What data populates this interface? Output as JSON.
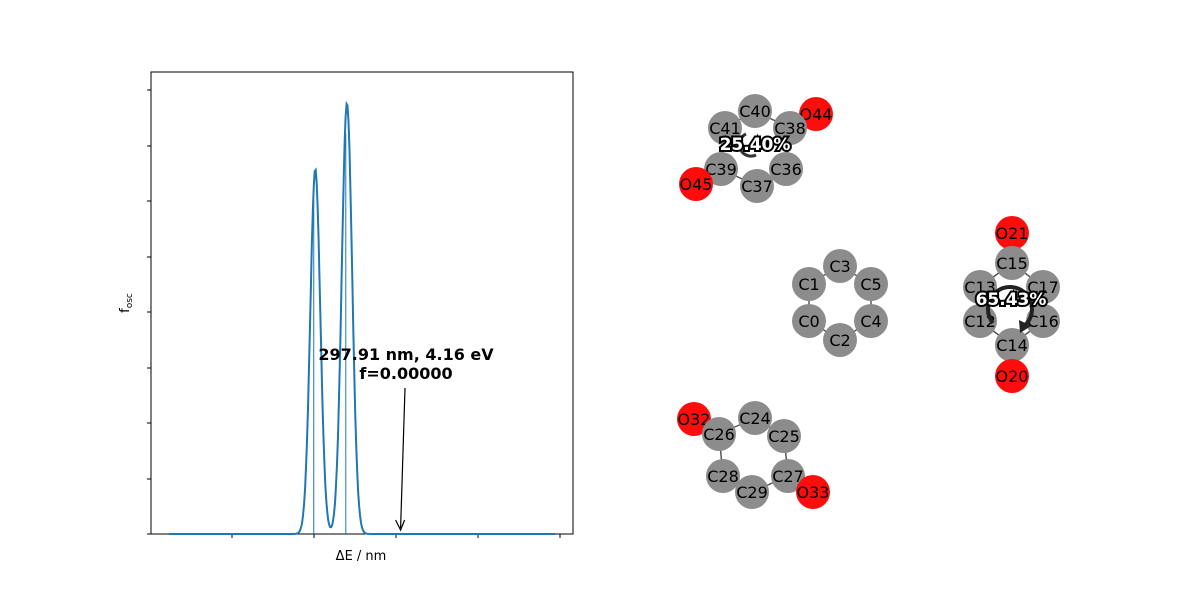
{
  "chart_data": {
    "type": "line",
    "title": "",
    "xlabel": "ΔE / nm",
    "ylabel": "f",
    "ylabel_subscript": "osc",
    "x_tick_labels": [],
    "y_tick_labels": [],
    "grid": false,
    "series": [
      {
        "values": [
          {
            "x": 0.05,
            "y": 0.0
          },
          {
            "x": 0.25,
            "y": 0.0
          },
          {
            "x": 0.32,
            "y": 0.002
          },
          {
            "x": 0.35,
            "y": 0.1
          },
          {
            "x": 0.37,
            "y": 0.55
          },
          {
            "x": 0.385,
            "y": 0.85
          },
          {
            "x": 0.395,
            "y": 0.72
          },
          {
            "x": 0.41,
            "y": 0.2
          },
          {
            "x": 0.425,
            "y": 0.05
          },
          {
            "x": 0.44,
            "y": 0.25
          },
          {
            "x": 0.455,
            "y": 0.78
          },
          {
            "x": 0.465,
            "y": 1.0
          },
          {
            "x": 0.475,
            "y": 0.82
          },
          {
            "x": 0.49,
            "y": 0.25
          },
          {
            "x": 0.505,
            "y": 0.02
          },
          {
            "x": 0.55,
            "y": 0.0
          },
          {
            "x": 1.0,
            "y": 0.0
          }
        ],
        "color": "#1f77b4"
      }
    ],
    "sticks": [
      {
        "x": 0.285,
        "y": 0.0
      },
      {
        "x": 0.375,
        "y": 0.76
      },
      {
        "x": 0.458,
        "y": 0.91
      },
      {
        "x": 0.6,
        "y": 0.0
      }
    ],
    "annotation": {
      "line1": "297.91 nm, 4.16 eV",
      "line2": "f=0.00000",
      "arrow_target_x": 0.6
    }
  },
  "ring_percentages": {
    "ring_top": "25.40%",
    "ring_right": "65.43%"
  },
  "atoms": {
    "C40": "C40",
    "O44": "O44",
    "C41": "C41",
    "C38": "C38",
    "C39": "C39",
    "C36": "C36",
    "O45": "O45",
    "C37": "C37",
    "C3": "C3",
    "C1": "C1",
    "C5": "C5",
    "C0": "C0",
    "C4": "C4",
    "C2": "C2",
    "O21": "O21",
    "C15": "C15",
    "C13": "C13",
    "C17": "C17",
    "C12": "C12",
    "C16": "C16",
    "C14": "C14",
    "O20": "O20",
    "O32": "O32",
    "C24": "C24",
    "C26": "C26",
    "C25": "C25",
    "C28": "C28",
    "C27": "C27",
    "C29": "C29",
    "O33": "O33"
  },
  "colors": {
    "carbon": "#8c8c8c",
    "oxygen": "#ff0d0d",
    "spectrum": "#1f77b4"
  }
}
